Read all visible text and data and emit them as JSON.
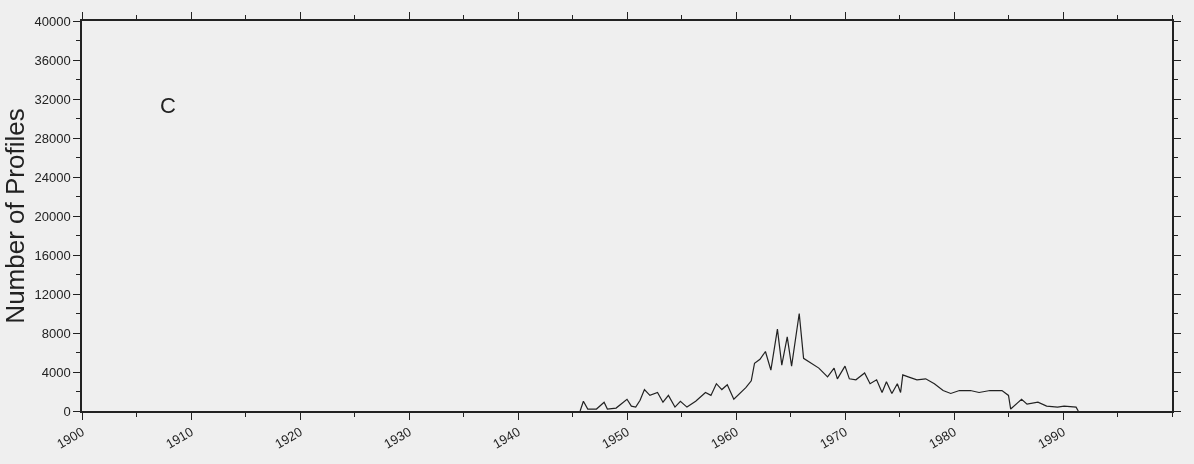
{
  "chart_data": {
    "type": "line",
    "ylabel": "Number of Profiles",
    "annotations": [
      "C"
    ],
    "x": [
      1945.7,
      1946.0,
      1946.4,
      1947.2,
      1947.9,
      1948.2,
      1949.0,
      1950.0,
      1950.4,
      1950.8,
      1951.2,
      1951.6,
      1952.1,
      1952.8,
      1953.3,
      1953.8,
      1954.4,
      1954.9,
      1955.5,
      1956.3,
      1957.2,
      1957.7,
      1958.2,
      1958.7,
      1959.2,
      1959.8,
      1960.9,
      1961.4,
      1961.7,
      1962.2,
      1962.7,
      1963.2,
      1963.8,
      1964.2,
      1964.7,
      1965.1,
      1965.8,
      1966.2,
      1967.6,
      1968.4,
      1969.0,
      1969.3,
      1970.0,
      1970.4,
      1971.0,
      1971.8,
      1972.3,
      1972.9,
      1973.4,
      1973.8,
      1974.3,
      1974.8,
      1975.1,
      1975.3,
      1975.8,
      1976.6,
      1977.4,
      1978.2,
      1979.0,
      1979.7,
      1980.5,
      1981.5,
      1982.3,
      1983.3,
      1984.4,
      1985.0,
      1985.2,
      1986.2,
      1986.7,
      1987.7,
      1988.5,
      1989.5,
      1990.1,
      1991.2,
      1991.4
    ],
    "series": [
      {
        "color": "#222222",
        "values": [
          0,
          1000,
          200,
          200,
          900,
          200,
          300,
          1200,
          500,
          400,
          1100,
          2200,
          1600,
          1900,
          900,
          1600,
          400,
          1000,
          400,
          1000,
          1900,
          1600,
          2800,
          2200,
          2700,
          1200,
          2400,
          3100,
          4900,
          5300,
          6100,
          4200,
          8400,
          4700,
          7600,
          4600,
          10000,
          5400,
          4400,
          3500,
          4400,
          3300,
          4600,
          3300,
          3200,
          3900,
          2800,
          3200,
          1900,
          3000,
          1800,
          2800,
          1900,
          3700,
          3500,
          3200,
          3300,
          2800,
          2100,
          1800,
          2100,
          2100,
          1900,
          2100,
          2100,
          1600,
          200,
          1200,
          700,
          900,
          500,
          400,
          500,
          400,
          0
        ]
      }
    ],
    "xlim": [
      1900,
      2000
    ],
    "xticks": [
      1900,
      1910,
      1920,
      1930,
      1940,
      1950,
      1960,
      1970,
      1980,
      1990
    ],
    "ylim": [
      0,
      40000
    ],
    "yticks": [
      0,
      4000,
      8000,
      12000,
      16000,
      20000,
      24000,
      28000,
      32000,
      36000,
      40000
    ],
    "grid": false,
    "marker": "none",
    "line_style": "solid"
  }
}
